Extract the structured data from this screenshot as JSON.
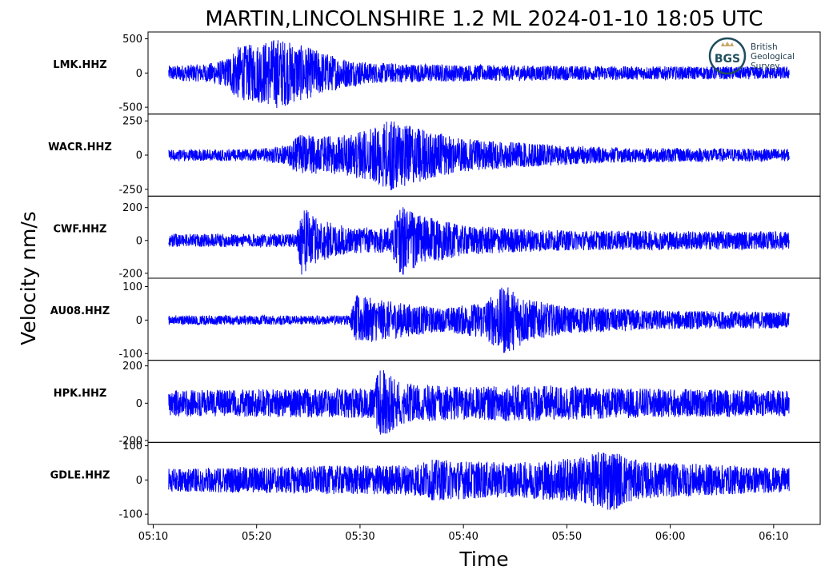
{
  "chart_data": {
    "type": "line",
    "title": "MARTIN,LINCOLNSHIRE 1.2 ML   2024-01-10 18:05 UTC",
    "xlabel": "Time",
    "ylabel": "Velocity nm/s",
    "x_range": [
      "05:11:30",
      "06:11:30"
    ],
    "x_axis_range": [
      "05:09:30",
      "06:14:30"
    ],
    "x_ticks": [
      "05:10",
      "05:20",
      "05:30",
      "05:40",
      "05:50",
      "06:00",
      "06:10"
    ],
    "line_color": "#0000ff",
    "grid": false,
    "legend": "none",
    "panels": [
      {
        "station": "LMK.HHZ",
        "ylim": [
          -600,
          600
        ],
        "yticks": [
          500,
          0,
          -500
        ],
        "ytick_labels": [
          "500",
          "0",
          "-500"
        ],
        "envelope": [
          [
            "05:11:30",
            110
          ],
          [
            "05:15:00",
            130
          ],
          [
            "05:17:00",
            200
          ],
          [
            "05:18:00",
            380
          ],
          [
            "05:20:30",
            450
          ],
          [
            "05:22:00",
            520
          ],
          [
            "05:24:00",
            420
          ],
          [
            "05:26:00",
            330
          ],
          [
            "05:28:00",
            230
          ],
          [
            "05:31:00",
            150
          ],
          [
            "05:40:00",
            120
          ],
          [
            "05:55:00",
            100
          ],
          [
            "06:11:30",
            90
          ]
        ]
      },
      {
        "station": "WACR.HHZ",
        "ylim": [
          -300,
          300
        ],
        "yticks": [
          250,
          0,
          -250
        ],
        "ytick_labels": [
          "250",
          "0",
          "-250"
        ],
        "envelope": [
          [
            "05:11:30",
            40
          ],
          [
            "05:20:00",
            45
          ],
          [
            "05:23:00",
            70
          ],
          [
            "05:24:00",
            150
          ],
          [
            "05:28:00",
            140
          ],
          [
            "05:31:00",
            190
          ],
          [
            "05:33:00",
            260
          ],
          [
            "05:36:00",
            190
          ],
          [
            "05:40:00",
            120
          ],
          [
            "05:48:00",
            80
          ],
          [
            "05:55:00",
            55
          ],
          [
            "06:11:30",
            45
          ]
        ]
      },
      {
        "station": "CWF.HHZ",
        "ylim": [
          -230,
          270
        ],
        "yticks": [
          200,
          0,
          -200
        ],
        "ytick_labels": [
          "200",
          "0",
          "-200"
        ],
        "envelope": [
          [
            "05:11:30",
            40
          ],
          [
            "05:23:50",
            40
          ],
          [
            "05:24:20",
            210
          ],
          [
            "05:26:00",
            130
          ],
          [
            "05:29:00",
            80
          ],
          [
            "05:33:00",
            80
          ],
          [
            "05:34:00",
            220
          ],
          [
            "05:36:00",
            150
          ],
          [
            "05:40:00",
            90
          ],
          [
            "05:50:00",
            60
          ],
          [
            "06:11:30",
            55
          ]
        ]
      },
      {
        "station": "AU08.HHZ",
        "ylim": [
          -120,
          125
        ],
        "yticks": [
          100,
          0,
          -100
        ],
        "ytick_labels": [
          "100",
          "0",
          "-100"
        ],
        "envelope": [
          [
            "05:11:30",
            14
          ],
          [
            "05:29:00",
            14
          ],
          [
            "05:29:40",
            75
          ],
          [
            "05:32:00",
            60
          ],
          [
            "05:38:00",
            35
          ],
          [
            "05:42:00",
            55
          ],
          [
            "05:44:00",
            105
          ],
          [
            "05:46:30",
            60
          ],
          [
            "05:50:00",
            40
          ],
          [
            "06:00:00",
            28
          ],
          [
            "06:11:30",
            25
          ]
        ]
      },
      {
        "station": "HPK.HHZ",
        "ylim": [
          -210,
          230
        ],
        "yticks": [
          200,
          0,
          -200
        ],
        "ytick_labels": [
          "200",
          "0",
          "-200"
        ],
        "envelope": [
          [
            "05:11:30",
            70
          ],
          [
            "05:31:00",
            80
          ],
          [
            "05:32:00",
            190
          ],
          [
            "05:34:00",
            110
          ],
          [
            "05:40:00",
            85
          ],
          [
            "05:46:00",
            100
          ],
          [
            "05:55:00",
            80
          ],
          [
            "06:11:30",
            70
          ]
        ]
      },
      {
        "station": "GDLE.HHZ",
        "ylim": [
          -130,
          110
        ],
        "yticks": [
          100,
          0,
          -100
        ],
        "ytick_labels": [
          "100",
          "0",
          "-100"
        ],
        "envelope": [
          [
            "05:11:30",
            35
          ],
          [
            "05:35:00",
            45
          ],
          [
            "05:37:00",
            60
          ],
          [
            "05:45:00",
            50
          ],
          [
            "05:52:00",
            70
          ],
          [
            "05:54:00",
            95
          ],
          [
            "05:57:00",
            55
          ],
          [
            "06:11:30",
            35
          ]
        ]
      }
    ]
  },
  "logo": {
    "initials": "BGS",
    "lines": [
      "British",
      "Geological",
      "Survey"
    ],
    "color": "#1f4e5f",
    "accent": "#c8a96a"
  }
}
